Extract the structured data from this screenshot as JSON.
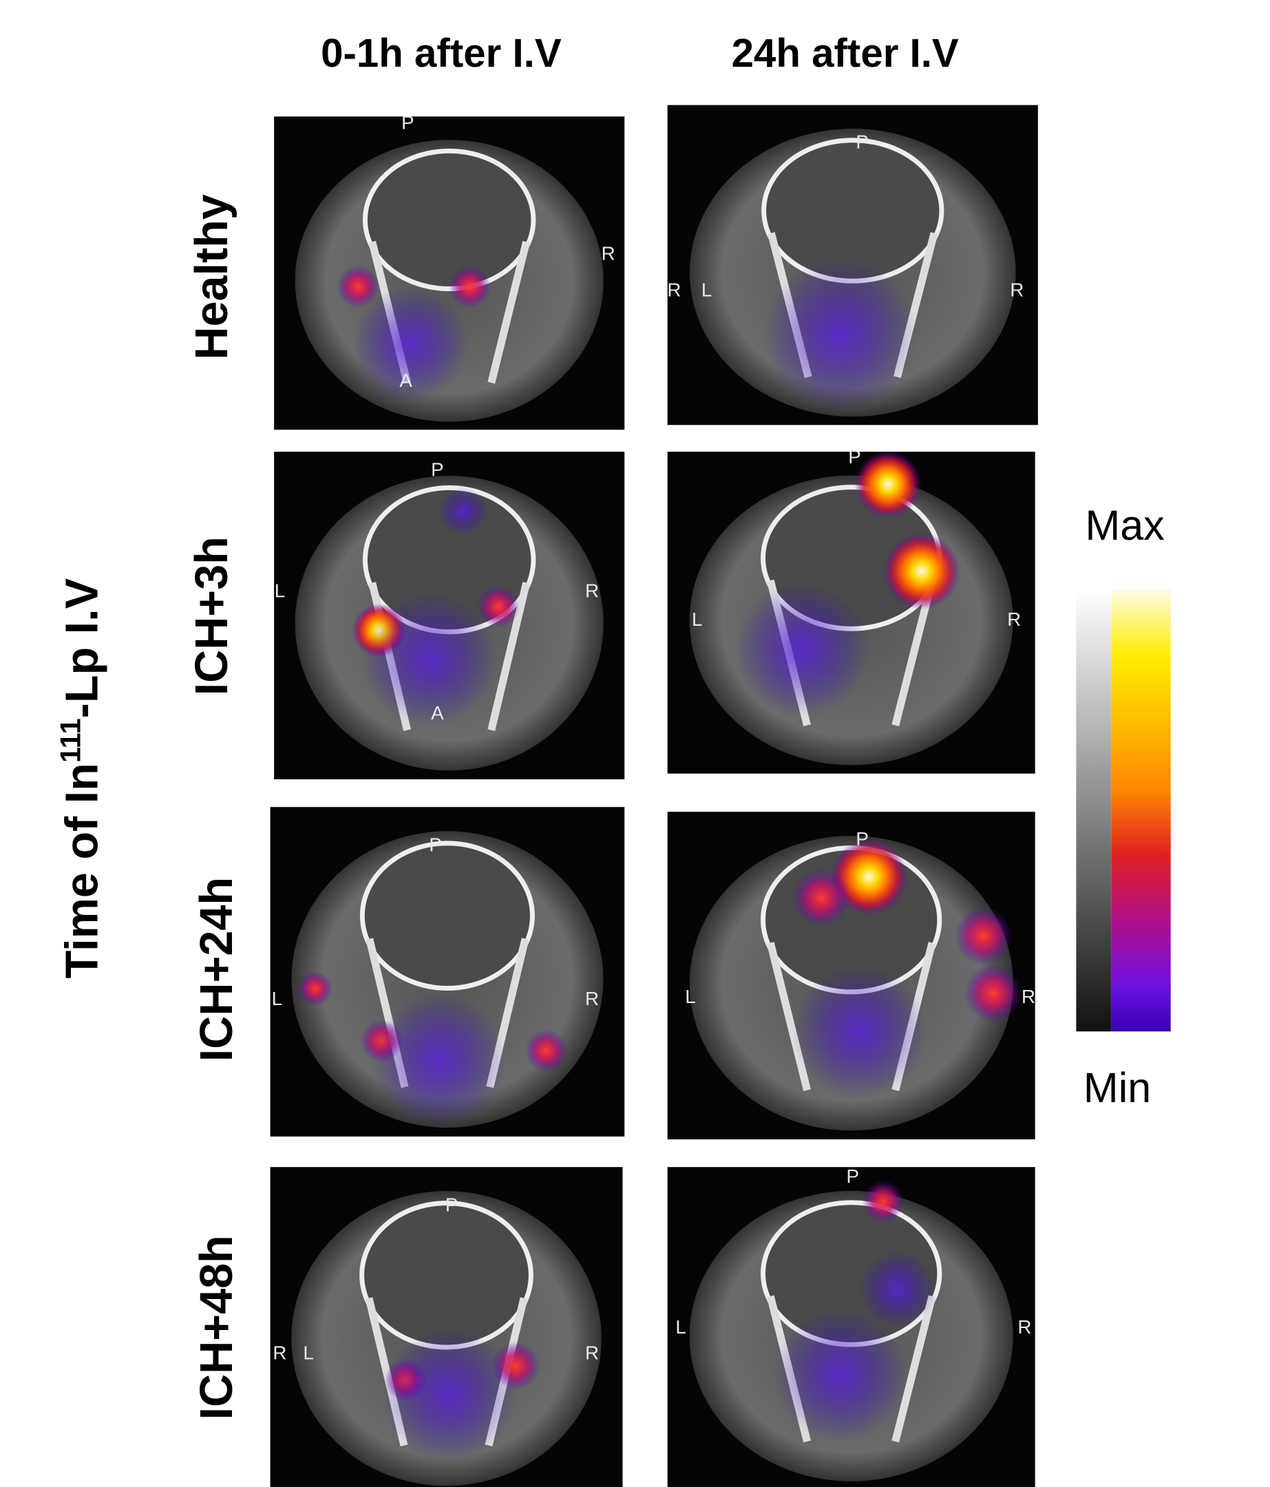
{
  "column_headers": [
    "0-1h after I.V",
    "24h after I.V"
  ],
  "y_axis_title": {
    "text": "Time of In",
    "superscript": "111",
    "suffix": "-Lp I.V"
  },
  "row_labels": [
    "Healthy",
    "ICH+3h",
    "ICH+24h",
    "ICH+48h"
  ],
  "colorbar": {
    "max_label": "Max",
    "min_label": "Min"
  },
  "panels": [
    [
      [
        "P",
        "R",
        "A"
      ],
      [
        "P",
        "R",
        "L",
        "R"
      ]
    ],
    [
      [
        "P",
        "L",
        "R",
        "A"
      ],
      [
        "P",
        "L",
        "R"
      ]
    ],
    [
      [
        "P",
        "L",
        "R"
      ],
      [
        "P",
        "L",
        "R"
      ]
    ],
    [
      [
        "P",
        "R",
        "L",
        "R"
      ],
      [
        "P",
        "L",
        "R"
      ]
    ]
  ]
}
